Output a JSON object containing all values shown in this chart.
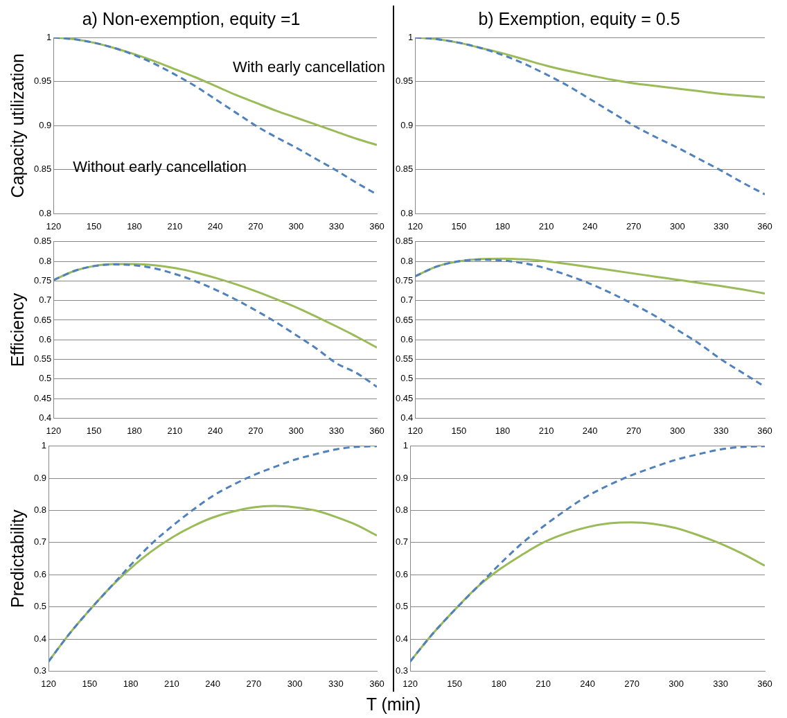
{
  "chart_data": [
    {
      "type": "line",
      "title": "a) Non-exemption, equity =1",
      "ylabel": "Capacity utilization",
      "x": [
        120,
        135,
        150,
        165,
        180,
        195,
        210,
        225,
        240,
        255,
        270,
        285,
        300,
        315,
        330,
        345,
        360
      ],
      "xlim": [
        120,
        360
      ],
      "xticks": [
        120,
        150,
        180,
        210,
        240,
        270,
        300,
        330,
        360
      ],
      "ylim": [
        0.8,
        1
      ],
      "yticks": [
        0.8,
        0.85,
        0.9,
        0.95,
        1
      ],
      "grid": "y",
      "legend": false,
      "marker": "none",
      "series": [
        {
          "name": "With early cancellation",
          "color": "#9bbb59",
          "line_style": "solid",
          "values": [
            1.0,
            0.998,
            0.994,
            0.988,
            0.981,
            0.973,
            0.964,
            0.955,
            0.945,
            0.935,
            0.926,
            0.917,
            0.909,
            0.901,
            0.893,
            0.885,
            0.878
          ]
        },
        {
          "name": "Without early cancellation",
          "color": "#4f81bd",
          "line_style": "dashed",
          "values": [
            1.0,
            0.998,
            0.994,
            0.988,
            0.98,
            0.97,
            0.958,
            0.945,
            0.93,
            0.915,
            0.9,
            0.887,
            0.875,
            0.862,
            0.849,
            0.835,
            0.822
          ]
        }
      ]
    },
    {
      "type": "line",
      "title": "b) Exemption, equity = 0.5",
      "x": [
        120,
        135,
        150,
        165,
        180,
        195,
        210,
        225,
        240,
        255,
        270,
        285,
        300,
        315,
        330,
        345,
        360
      ],
      "xlim": [
        120,
        360
      ],
      "xticks": [
        120,
        150,
        180,
        210,
        240,
        270,
        300,
        330,
        360
      ],
      "ylim": [
        0.8,
        1
      ],
      "yticks": [
        0.8,
        0.85,
        0.9,
        0.95,
        1
      ],
      "grid": "y",
      "legend": false,
      "marker": "none",
      "series": [
        {
          "color": "#9bbb59",
          "line_style": "solid",
          "values": [
            1.0,
            0.998,
            0.994,
            0.988,
            0.982,
            0.975,
            0.968,
            0.962,
            0.957,
            0.952,
            0.948,
            0.945,
            0.942,
            0.939,
            0.936,
            0.934,
            0.932
          ]
        },
        {
          "color": "#4f81bd",
          "line_style": "dashed",
          "values": [
            1.0,
            0.998,
            0.994,
            0.988,
            0.98,
            0.97,
            0.958,
            0.945,
            0.93,
            0.915,
            0.9,
            0.887,
            0.875,
            0.862,
            0.849,
            0.835,
            0.822
          ]
        }
      ]
    },
    {
      "type": "line",
      "ylabel": "Efficiency",
      "x": [
        120,
        135,
        150,
        165,
        180,
        195,
        210,
        225,
        240,
        255,
        270,
        285,
        300,
        315,
        330,
        345,
        360
      ],
      "xlim": [
        120,
        360
      ],
      "xticks": [
        120,
        150,
        180,
        210,
        240,
        270,
        300,
        330,
        360
      ],
      "ylim": [
        0.4,
        0.85
      ],
      "yticks": [
        0.4,
        0.45,
        0.5,
        0.55,
        0.6,
        0.65,
        0.7,
        0.75,
        0.8,
        0.85
      ],
      "grid": "y",
      "legend": false,
      "marker": "none",
      "series": [
        {
          "color": "#9bbb59",
          "line_style": "solid",
          "values": [
            0.752,
            0.775,
            0.788,
            0.793,
            0.793,
            0.79,
            0.783,
            0.772,
            0.758,
            0.742,
            0.724,
            0.704,
            0.683,
            0.659,
            0.634,
            0.608,
            0.58
          ]
        },
        {
          "color": "#4f81bd",
          "line_style": "dashed",
          "values": [
            0.752,
            0.775,
            0.788,
            0.792,
            0.79,
            0.782,
            0.768,
            0.75,
            0.728,
            0.703,
            0.675,
            0.645,
            0.612,
            0.578,
            0.54,
            0.515,
            0.48
          ]
        }
      ]
    },
    {
      "type": "line",
      "x": [
        120,
        135,
        150,
        165,
        180,
        195,
        210,
        225,
        240,
        255,
        270,
        285,
        300,
        315,
        330,
        345,
        360
      ],
      "xlim": [
        120,
        360
      ],
      "xticks": [
        120,
        150,
        180,
        210,
        240,
        270,
        300,
        330,
        360
      ],
      "ylim": [
        0.4,
        0.85
      ],
      "yticks": [
        0.4,
        0.45,
        0.5,
        0.55,
        0.6,
        0.65,
        0.7,
        0.75,
        0.8,
        0.85
      ],
      "grid": "y",
      "legend": false,
      "marker": "none",
      "series": [
        {
          "color": "#9bbb59",
          "line_style": "solid",
          "values": [
            0.762,
            0.787,
            0.8,
            0.806,
            0.807,
            0.805,
            0.8,
            0.793,
            0.785,
            0.777,
            0.769,
            0.761,
            0.753,
            0.745,
            0.737,
            0.728,
            0.718
          ]
        },
        {
          "color": "#4f81bd",
          "line_style": "dashed",
          "values": [
            0.762,
            0.787,
            0.8,
            0.804,
            0.802,
            0.795,
            0.782,
            0.764,
            0.743,
            0.718,
            0.69,
            0.66,
            0.625,
            0.59,
            0.55,
            0.515,
            0.48
          ]
        }
      ]
    },
    {
      "type": "line",
      "ylabel": "Predictability",
      "xlabel": "T (min)",
      "x": [
        120,
        135,
        150,
        165,
        180,
        195,
        210,
        225,
        240,
        255,
        270,
        285,
        300,
        315,
        330,
        345,
        360
      ],
      "xlim": [
        120,
        360
      ],
      "xticks": [
        120,
        150,
        180,
        210,
        240,
        270,
        300,
        330,
        360
      ],
      "ylim": [
        0.3,
        1
      ],
      "yticks": [
        0.3,
        0.4,
        0.5,
        0.6,
        0.7,
        0.8,
        0.9,
        1
      ],
      "grid": "y",
      "legend": false,
      "marker": "none",
      "series": [
        {
          "color": "#9bbb59",
          "line_style": "solid",
          "values": [
            0.33,
            0.415,
            0.49,
            0.56,
            0.62,
            0.672,
            0.715,
            0.75,
            0.778,
            0.797,
            0.81,
            0.814,
            0.81,
            0.8,
            0.78,
            0.755,
            0.722
          ]
        },
        {
          "color": "#4f81bd",
          "line_style": "dashed",
          "values": [
            0.33,
            0.415,
            0.49,
            0.56,
            0.63,
            0.695,
            0.75,
            0.8,
            0.845,
            0.88,
            0.91,
            0.935,
            0.958,
            0.975,
            0.99,
            0.998,
            1.0
          ]
        }
      ]
    },
    {
      "type": "line",
      "x": [
        120,
        135,
        150,
        165,
        180,
        195,
        210,
        225,
        240,
        255,
        270,
        285,
        300,
        315,
        330,
        345,
        360
      ],
      "xlim": [
        120,
        360
      ],
      "xticks": [
        120,
        150,
        180,
        210,
        240,
        270,
        300,
        330,
        360
      ],
      "ylim": [
        0.3,
        1
      ],
      "yticks": [
        0.3,
        0.4,
        0.5,
        0.6,
        0.7,
        0.8,
        0.9,
        1
      ],
      "grid": "y",
      "legend": false,
      "marker": "none",
      "series": [
        {
          "color": "#9bbb59",
          "line_style": "solid",
          "values": [
            0.33,
            0.415,
            0.49,
            0.56,
            0.615,
            0.66,
            0.7,
            0.728,
            0.748,
            0.76,
            0.763,
            0.758,
            0.745,
            0.723,
            0.697,
            0.665,
            0.628
          ]
        },
        {
          "color": "#4f81bd",
          "line_style": "dashed",
          "values": [
            0.33,
            0.415,
            0.49,
            0.56,
            0.63,
            0.695,
            0.75,
            0.8,
            0.845,
            0.88,
            0.91,
            0.935,
            0.958,
            0.975,
            0.99,
            0.998,
            1.0
          ]
        }
      ]
    }
  ]
}
